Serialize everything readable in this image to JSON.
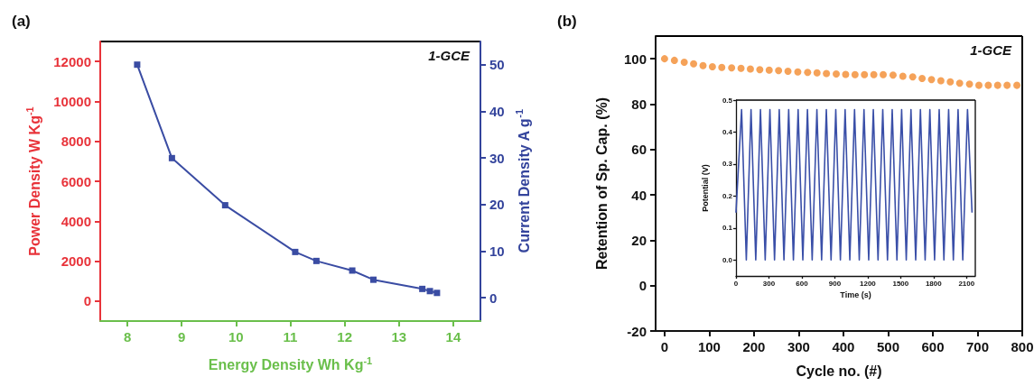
{
  "chart_data": [
    {
      "type": "line",
      "title": "(a)",
      "xlabel": "Energy Density Wh Kg$^{-1}$",
      "ylabel": "Power Density W Kg$^{-1}$",
      "y2label": "Current Density A g$^{-1}$",
      "annotations": [
        "1-GCE"
      ],
      "marker": "square",
      "line_style": "solid",
      "x": [
        8.18,
        8.82,
        9.8,
        11.09,
        11.48,
        12.14,
        12.53,
        13.43,
        13.57,
        13.7
      ],
      "series": [
        {
          "color": "#3a4ca3",
          "values": [
            11840,
            7160,
            4800,
            2460,
            2010,
            1530,
            1070,
            610,
            500,
            410
          ]
        }
      ],
      "xlim": [
        7.5,
        14.5
      ],
      "xticks": [
        8,
        9,
        10,
        11,
        12,
        13,
        14
      ],
      "ylim": [
        -1000,
        13000
      ],
      "yticks": [
        0,
        2000,
        4000,
        6000,
        8000,
        10000,
        12000
      ],
      "y2lim": [
        -5,
        55
      ],
      "y2ticks": [
        0,
        10,
        20,
        30,
        40,
        50
      ]
    },
    {
      "type": "scatter",
      "title": "(b)",
      "xlabel": "Cycle no. (#)",
      "ylabel": "Retention of Sp. Cap. (%)",
      "annotations": [
        "1-GCE"
      ],
      "marker": "circle",
      "x": [
        0,
        22,
        44,
        65,
        86,
        107,
        128,
        150,
        171,
        192,
        213,
        234,
        255,
        276,
        298,
        320,
        341,
        362,
        384,
        405,
        426,
        447,
        468,
        489,
        511,
        533,
        555,
        576,
        597,
        618,
        639,
        660,
        682,
        703,
        724,
        745,
        766,
        788
      ],
      "series": [
        {
          "color": "#f28b30",
          "values": [
            100,
            99.3,
            98.5,
            97.8,
            97,
            96.5,
            96.2,
            96,
            95.8,
            95.5,
            95.2,
            95,
            94.8,
            94.5,
            94.2,
            94,
            93.8,
            93.5,
            93.3,
            93.1,
            93,
            93,
            93,
            93,
            92.8,
            92.3,
            92,
            91.3,
            90.8,
            90.3,
            89.8,
            89.2,
            88.8,
            88.3,
            88.3,
            88.3,
            88.3,
            88.3
          ]
        }
      ],
      "xlim": [
        -20,
        800
      ],
      "xticks": [
        0,
        100,
        200,
        300,
        400,
        500,
        600,
        700,
        800
      ],
      "ylim": [
        -20,
        110
      ],
      "yticks": [
        -20,
        0,
        20,
        40,
        60,
        80,
        100
      ]
    },
    {
      "type": "line",
      "xlabel": "Time (s)",
      "ylabel": "Potential (V)",
      "marker": "none",
      "line_style": "solid",
      "x": [
        0,
        51,
        94,
        137,
        180,
        223,
        266,
        309,
        351,
        394,
        437,
        480,
        523,
        566,
        609,
        651,
        694,
        737,
        780,
        823,
        866,
        909,
        951,
        994,
        1037,
        1080,
        1123,
        1166,
        1209,
        1251,
        1294,
        1337,
        1380,
        1423,
        1466,
        1509,
        1551,
        1594,
        1637,
        1680,
        1723,
        1766,
        1809,
        1851,
        1894,
        1937,
        1980,
        2023,
        2066,
        2109,
        2150
      ],
      "series": [
        {
          "color": "#3a4fa8",
          "values": [
            0.15,
            0.47,
            0,
            0.47,
            0,
            0.47,
            0,
            0.47,
            0,
            0.47,
            0,
            0.47,
            0,
            0.47,
            0,
            0.47,
            0,
            0.47,
            0,
            0.47,
            0,
            0.47,
            0,
            0.47,
            0,
            0.47,
            0,
            0.47,
            0,
            0.47,
            0,
            0.47,
            0,
            0.47,
            0,
            0.47,
            0,
            0.47,
            0,
            0.47,
            0,
            0.47,
            0,
            0.47,
            0,
            0.47,
            0,
            0.47,
            0,
            0.47,
            0.15
          ]
        }
      ],
      "xlim": [
        0,
        2180
      ],
      "xticks": [
        0,
        300,
        600,
        900,
        1200,
        1500,
        1800,
        2100
      ],
      "ylim": [
        -0.05,
        0.5
      ],
      "yticks": [
        {
          "value": 0,
          "label": "0.0"
        },
        {
          "value": 0.1,
          "label": "0.1"
        },
        {
          "value": 0.2,
          "label": "0.2"
        },
        {
          "value": 0.3,
          "label": "0.3"
        },
        {
          "value": 0.4,
          "label": "0.4"
        },
        {
          "value": 0.5,
          "label": "0.5"
        }
      ]
    }
  ]
}
